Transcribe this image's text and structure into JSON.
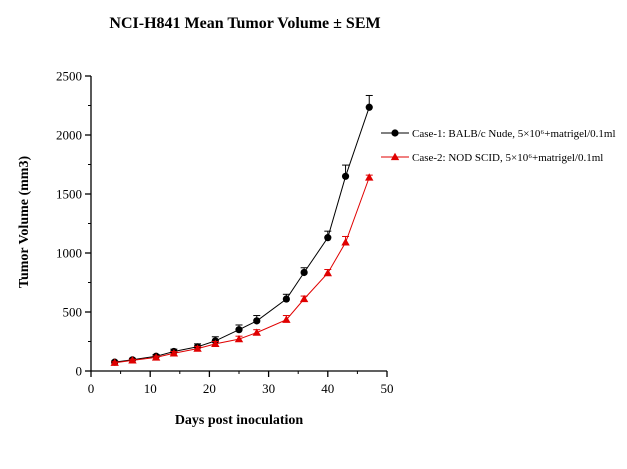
{
  "chart_data": {
    "type": "line",
    "title": "NCI-H841 Mean Tumor Volume ± SEM",
    "xlabel": "Days post inoculation",
    "ylabel": "Tumor Volume (mm3)",
    "xlim": [
      0,
      50
    ],
    "ylim": [
      0,
      2500
    ],
    "x_ticks": [
      "0",
      "10",
      "20",
      "30",
      "40",
      "50"
    ],
    "y_ticks": [
      "0",
      "500",
      "1000",
      "1500",
      "2000",
      "2500"
    ],
    "legend_position": "right",
    "grid": false,
    "series": [
      {
        "name": "Case-1: BALB/c Nude, 5×10⁶+matrigel/0.1ml",
        "color": "#000000",
        "marker": "circle",
        "x": [
          4,
          7,
          11,
          14,
          18,
          21,
          25,
          28,
          33,
          36,
          40,
          43,
          47
        ],
        "y": [
          75,
          95,
          125,
          165,
          205,
          255,
          350,
          425,
          610,
          835,
          1130,
          1650,
          2235
        ],
        "sem": [
          10,
          12,
          15,
          20,
          25,
          35,
          40,
          45,
          40,
          40,
          55,
          95,
          100
        ]
      },
      {
        "name": "Case-2: NOD SCID, 5×10⁶+matrigel/0.1ml",
        "color": "#e00000",
        "marker": "triangle",
        "x": [
          4,
          7,
          11,
          14,
          18,
          21,
          25,
          28,
          33,
          36,
          40,
          43,
          47
        ],
        "y": [
          70,
          90,
          115,
          150,
          190,
          230,
          270,
          325,
          435,
          610,
          830,
          1090,
          1640
        ],
        "sem": [
          8,
          10,
          12,
          15,
          18,
          20,
          25,
          25,
          35,
          25,
          30,
          50,
          20
        ]
      }
    ]
  }
}
